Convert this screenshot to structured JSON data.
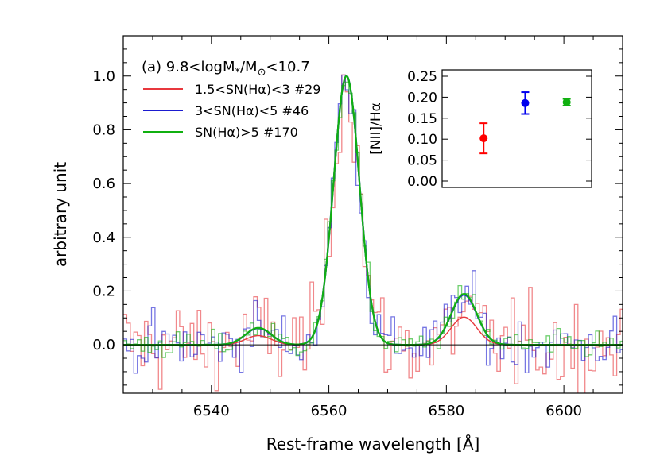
{
  "chart_data": [
    {
      "type": "line",
      "title": "",
      "annotation": "(a) 9.8<logM*/M⊙<10.7",
      "annotation_parts": {
        "prefix": "(a) 9.8<logM",
        "sub": "*",
        "mid": "/M",
        "sub2": "⊙",
        "suffix": "<10.7"
      },
      "xlabel": "Rest-frame wavelength [Å]",
      "ylabel": "arbitrary unit",
      "xlim": [
        6525,
        6610
      ],
      "ylim": [
        -0.18,
        1.15
      ],
      "xticks": [
        6540,
        6560,
        6580,
        6600
      ],
      "yticks": [
        0.0,
        0.2,
        0.4,
        0.6,
        0.8,
        1.0
      ],
      "ytick_labels": [
        "0.0",
        "0.2",
        "0.4",
        "0.6",
        "0.8",
        "1.0"
      ],
      "grid": false,
      "legend_position": "top-left",
      "reference_line_y": 0.0,
      "series": [
        {
          "name": "1.5<SN(Hα)<3  #29",
          "color": "#e8383d",
          "stack_noise": 0.085,
          "halpha_peak": 1.0,
          "nii6548_peak": 0.034,
          "nii6583_peak": 0.103
        },
        {
          "name": "3<SN(Hα)<5   #46",
          "color": "#1b1bd0",
          "stack_noise": 0.05,
          "halpha_peak": 1.0,
          "nii6548_peak": 0.062,
          "nii6583_peak": 0.186
        },
        {
          "name": "SN(Hα)>5   #170",
          "color": "#10b010",
          "stack_noise": 0.025,
          "halpha_peak": 1.0,
          "nii6548_peak": 0.063,
          "nii6583_peak": 0.189
        }
      ],
      "line_centers": [
        6548.0,
        6563.0,
        6583.0
      ],
      "line_sigma": 2.2
    },
    {
      "type": "scatter",
      "title": "",
      "ylabel": "[NII]/Hα",
      "ylim": [
        0.0,
        0.25
      ],
      "yticks": [
        "0.25",
        "0.20",
        "0.15",
        "0.10",
        "0.05",
        "0.00"
      ],
      "points": [
        {
          "x": 1,
          "y": 0.102,
          "err": 0.036,
          "color": "#ff0000"
        },
        {
          "x": 2,
          "y": 0.186,
          "err": 0.026,
          "color": "#0000ee"
        },
        {
          "x": 3,
          "y": 0.188,
          "err": 0.008,
          "color": "#10b010"
        }
      ],
      "xlim": [
        0,
        3.6
      ]
    }
  ]
}
